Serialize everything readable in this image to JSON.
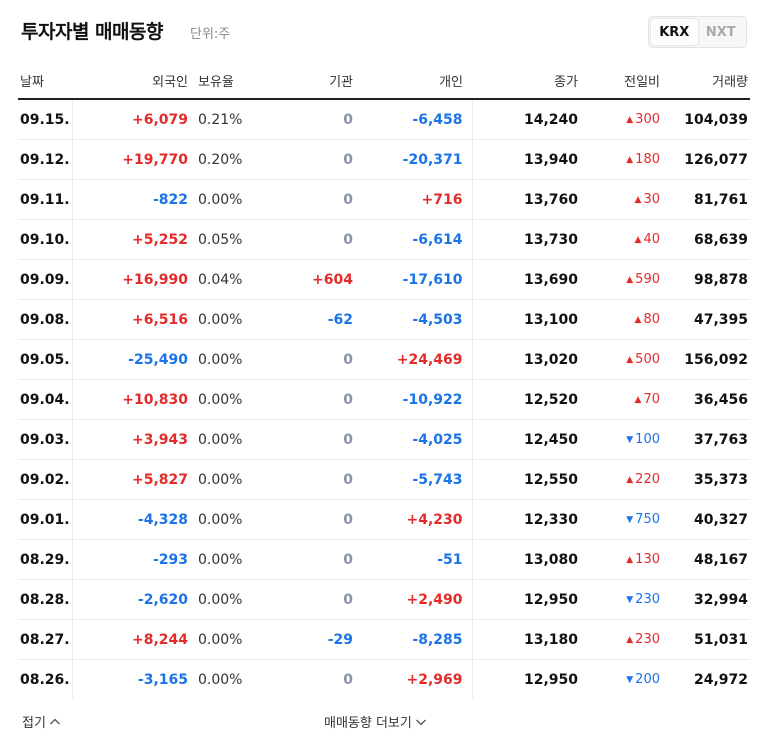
{
  "header": {
    "title": "투자자별 매매동향",
    "unit": "단위:주",
    "exchanges": [
      "KRX",
      "NXT"
    ],
    "active_exchange": "KRX"
  },
  "columns": {
    "date": "날짜",
    "foreign": "외국인",
    "holding": "보유율",
    "institution": "기관",
    "individual": "개인",
    "close": "종가",
    "change": "전일비",
    "volume": "거래량"
  },
  "rows": [
    {
      "date": "09.15.",
      "foreign": "+6,079",
      "holding": "0.21%",
      "institution": "0",
      "individual": "-6,458",
      "close": "14,240",
      "change": "300",
      "dir": "up",
      "volume": "104,039"
    },
    {
      "date": "09.12.",
      "foreign": "+19,770",
      "holding": "0.20%",
      "institution": "0",
      "individual": "-20,371",
      "close": "13,940",
      "change": "180",
      "dir": "up",
      "volume": "126,077"
    },
    {
      "date": "09.11.",
      "foreign": "-822",
      "holding": "0.00%",
      "institution": "0",
      "individual": "+716",
      "close": "13,760",
      "change": "30",
      "dir": "up",
      "volume": "81,761"
    },
    {
      "date": "09.10.",
      "foreign": "+5,252",
      "holding": "0.05%",
      "institution": "0",
      "individual": "-6,614",
      "close": "13,730",
      "change": "40",
      "dir": "up",
      "volume": "68,639"
    },
    {
      "date": "09.09.",
      "foreign": "+16,990",
      "holding": "0.04%",
      "institution": "+604",
      "individual": "-17,610",
      "close": "13,690",
      "change": "590",
      "dir": "up",
      "volume": "98,878"
    },
    {
      "date": "09.08.",
      "foreign": "+6,516",
      "holding": "0.00%",
      "institution": "-62",
      "individual": "-4,503",
      "close": "13,100",
      "change": "80",
      "dir": "up",
      "volume": "47,395"
    },
    {
      "date": "09.05.",
      "foreign": "-25,490",
      "holding": "0.00%",
      "institution": "0",
      "individual": "+24,469",
      "close": "13,020",
      "change": "500",
      "dir": "up",
      "volume": "156,092"
    },
    {
      "date": "09.04.",
      "foreign": "+10,830",
      "holding": "0.00%",
      "institution": "0",
      "individual": "-10,922",
      "close": "12,520",
      "change": "70",
      "dir": "up",
      "volume": "36,456"
    },
    {
      "date": "09.03.",
      "foreign": "+3,943",
      "holding": "0.00%",
      "institution": "0",
      "individual": "-4,025",
      "close": "12,450",
      "change": "100",
      "dir": "down",
      "volume": "37,763"
    },
    {
      "date": "09.02.",
      "foreign": "+5,827",
      "holding": "0.00%",
      "institution": "0",
      "individual": "-5,743",
      "close": "12,550",
      "change": "220",
      "dir": "up",
      "volume": "35,373"
    },
    {
      "date": "09.01.",
      "foreign": "-4,328",
      "holding": "0.00%",
      "institution": "0",
      "individual": "+4,230",
      "close": "12,330",
      "change": "750",
      "dir": "down",
      "volume": "40,327"
    },
    {
      "date": "08.29.",
      "foreign": "-293",
      "holding": "0.00%",
      "institution": "0",
      "individual": "-51",
      "close": "13,080",
      "change": "130",
      "dir": "up",
      "volume": "48,167"
    },
    {
      "date": "08.28.",
      "foreign": "-2,620",
      "holding": "0.00%",
      "institution": "0",
      "individual": "+2,490",
      "close": "12,950",
      "change": "230",
      "dir": "down",
      "volume": "32,994"
    },
    {
      "date": "08.27.",
      "foreign": "+8,244",
      "holding": "0.00%",
      "institution": "-29",
      "individual": "-8,285",
      "close": "13,180",
      "change": "230",
      "dir": "up",
      "volume": "51,031"
    },
    {
      "date": "08.26.",
      "foreign": "-3,165",
      "holding": "0.00%",
      "institution": "0",
      "individual": "+2,969",
      "close": "12,950",
      "change": "200",
      "dir": "down",
      "volume": "24,972"
    }
  ],
  "footer": {
    "fold_label": "접기",
    "more_label": "매매동향 더보기"
  },
  "colors": {
    "up": "#e22b2b",
    "down": "#1a73e8",
    "zero": "#8a94a6"
  }
}
